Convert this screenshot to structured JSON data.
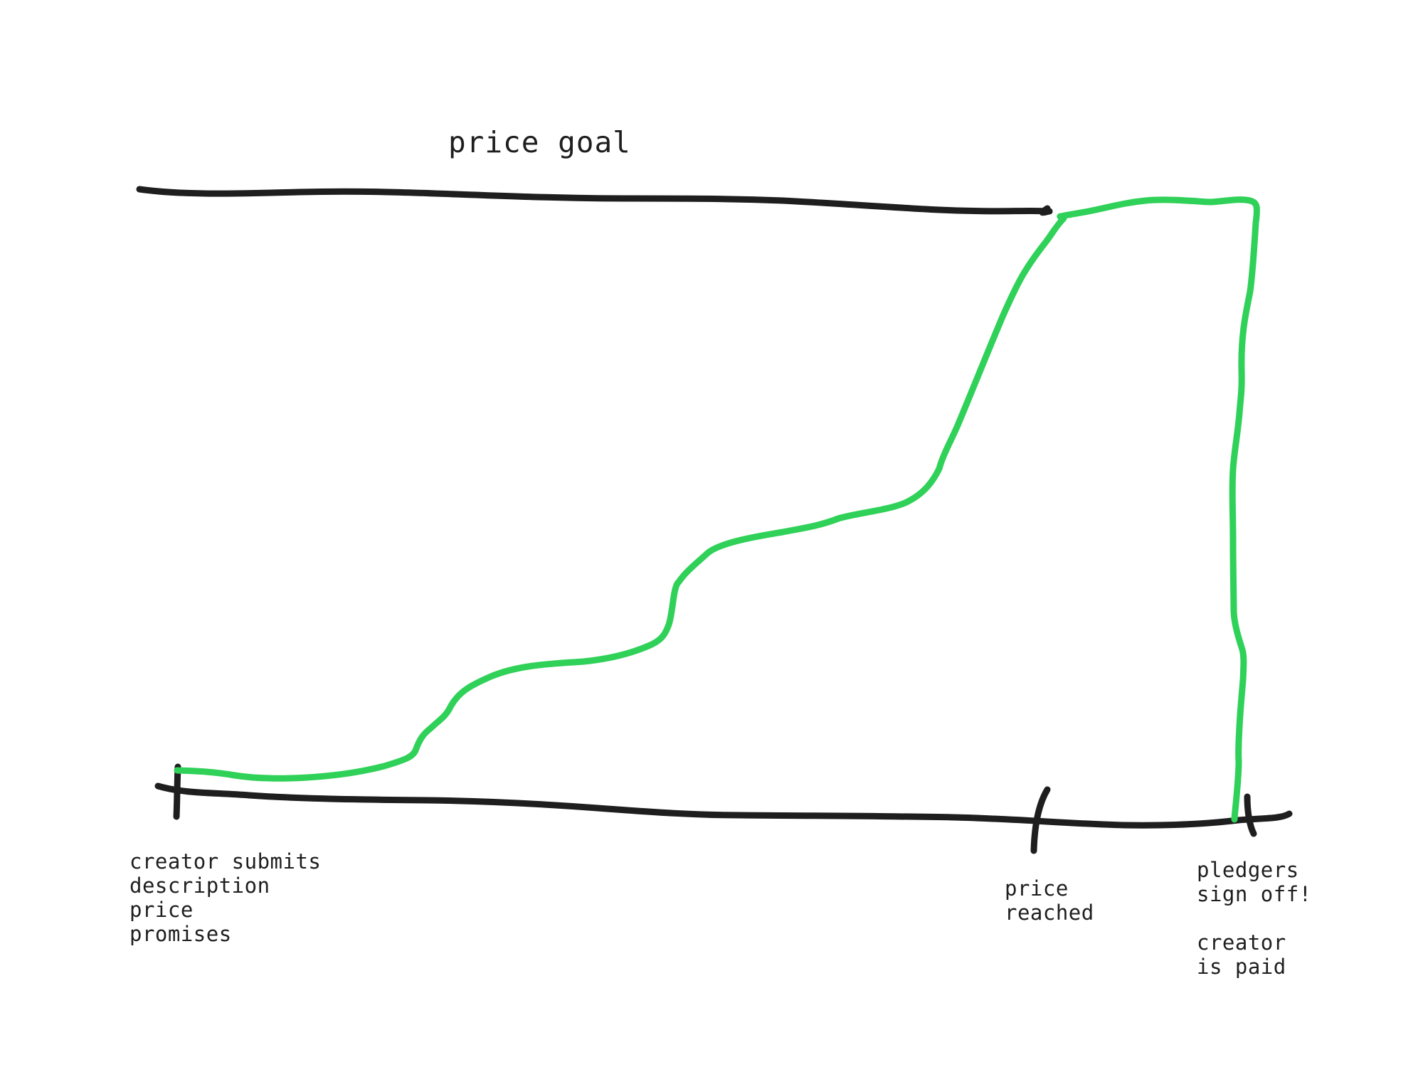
{
  "colors": {
    "ink": "#1e1e1e",
    "progress": "#2fd158",
    "background": "#ffffff"
  },
  "goal": {
    "label": "price goal"
  },
  "milestones": [
    {
      "id": "start",
      "lines": [
        "creator submits",
        "description",
        "price",
        "promises"
      ]
    },
    {
      "id": "reached",
      "lines": [
        "price",
        "reached"
      ]
    },
    {
      "id": "signoff",
      "lines": [
        "pledgers",
        "sign off!",
        "",
        "creator",
        "is paid"
      ]
    }
  ]
}
